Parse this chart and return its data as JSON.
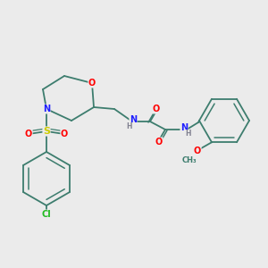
{
  "bg_color": "#ebebeb",
  "bond_color": "#3d7d6e",
  "colors": {
    "C": "#3d7d6e",
    "N": "#2020ff",
    "O": "#ff0000",
    "S": "#cccc00",
    "Cl": "#22bb22",
    "H": "#808090"
  },
  "fs": 7.0,
  "lw": 1.3
}
